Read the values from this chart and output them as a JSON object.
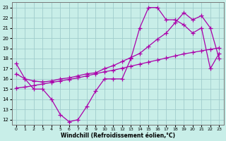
{
  "xlabel": "Windchill (Refroidissement éolien,°C)",
  "xlim": [
    -0.5,
    23.5
  ],
  "ylim": [
    11.5,
    23.5
  ],
  "xticks": [
    0,
    1,
    2,
    3,
    4,
    5,
    6,
    7,
    8,
    9,
    10,
    11,
    12,
    13,
    14,
    15,
    16,
    17,
    18,
    19,
    20,
    21,
    22,
    23
  ],
  "yticks": [
    12,
    13,
    14,
    15,
    16,
    17,
    18,
    19,
    20,
    21,
    22,
    23
  ],
  "bg_color": "#c8eee8",
  "grid_color": "#a0cccc",
  "line_color": "#aa00aa",
  "line1_x": [
    0,
    1,
    2,
    3,
    4,
    5,
    6,
    7,
    8,
    9,
    10,
    11,
    12,
    13,
    14,
    15,
    16,
    17,
    18,
    19,
    20,
    21,
    22,
    23
  ],
  "line1_y": [
    17.5,
    16.0,
    15.0,
    15.0,
    14.0,
    12.5,
    11.8,
    12.0,
    13.3,
    14.8,
    16.0,
    16.0,
    16.0,
    18.0,
    21.0,
    23.0,
    23.0,
    21.8,
    21.8,
    21.3,
    20.5,
    21.0,
    17.0,
    18.5
  ],
  "line2_x": [
    0,
    1,
    2,
    3,
    4,
    5,
    6,
    7,
    8,
    9,
    10,
    11,
    12,
    13,
    14,
    15,
    16,
    17,
    18,
    19,
    20,
    21,
    22,
    23
  ],
  "line2_y": [
    15.1,
    15.2,
    15.35,
    15.5,
    15.65,
    15.8,
    15.95,
    16.1,
    16.3,
    16.5,
    16.7,
    16.85,
    17.05,
    17.25,
    17.45,
    17.65,
    17.85,
    18.05,
    18.25,
    18.45,
    18.6,
    18.75,
    18.9,
    19.05
  ],
  "line3_x": [
    0,
    1,
    2,
    3,
    4,
    5,
    6,
    7,
    8,
    9,
    10,
    11,
    12,
    13,
    14,
    15,
    16,
    17,
    18,
    19,
    20,
    21,
    22,
    23
  ],
  "line3_y": [
    16.5,
    16.0,
    15.8,
    15.7,
    15.8,
    16.0,
    16.1,
    16.3,
    16.5,
    16.6,
    17.0,
    17.3,
    17.7,
    18.1,
    18.5,
    19.2,
    19.9,
    20.5,
    21.5,
    22.5,
    21.8,
    22.2,
    21.0,
    18.0
  ],
  "marker": "+",
  "markersize": 4,
  "linewidth": 0.9
}
